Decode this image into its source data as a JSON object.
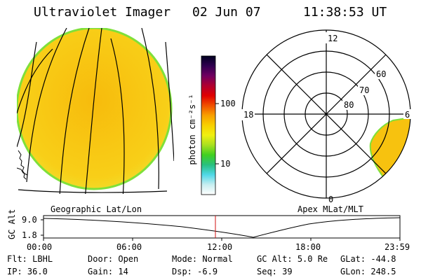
{
  "header": {
    "instrument": "Ultraviolet Imager",
    "date": "02 Jun 07",
    "time": "11:38:53 UT"
  },
  "colors": {
    "background": "#ffffff",
    "disk_fill": "#f7c20f",
    "disk_edge": "#7fe03a",
    "cursor": "#d01010"
  },
  "colorbar": {
    "unit_label": "photon cm⁻²s⁻¹",
    "tick_labels": [
      "100",
      "10"
    ],
    "stops": [
      "#ffffff",
      "#c8eef0",
      "#50d8e8",
      "#28c080",
      "#40d020",
      "#a8e020",
      "#f0f010",
      "#f8d000",
      "#f8a000",
      "#f05000",
      "#e00000",
      "#b00030",
      "#700060",
      "#300050",
      "#000020"
    ]
  },
  "panels": {
    "geo_label": "Geographic Lat/Lon",
    "apex_label": "Apex  MLat/MLT"
  },
  "polar": {
    "mlt_labels": {
      "top": "12",
      "left": "18",
      "right": "6",
      "bottom": "0"
    },
    "lat_labels": [
      "60",
      "70",
      "80"
    ]
  },
  "timeline": {
    "y_axis_label": "GC Alt",
    "y_ticks": [
      "9.0",
      "1.8"
    ],
    "x_ticks": [
      "00:00",
      "06:00",
      "12:00",
      "18:00",
      "23:59"
    ]
  },
  "info": {
    "row1": [
      {
        "label": "Flt:",
        "value": "LBHL"
      },
      {
        "label": "Door:",
        "value": "Open"
      },
      {
        "label": "Mode:",
        "value": "Normal"
      },
      {
        "label": "GC Alt:",
        "value": "5.0 Re"
      },
      {
        "label": "GLat:",
        "value": "-44.8"
      }
    ],
    "row2": [
      {
        "label": "IP:",
        "value": "36.0"
      },
      {
        "label": "Gain:",
        "value": "14"
      },
      {
        "label": "Dsp:",
        "value": "-6.9"
      },
      {
        "label": "Seq:",
        "value": "39"
      },
      {
        "label": "GLon:",
        "value": "248.5"
      }
    ]
  }
}
